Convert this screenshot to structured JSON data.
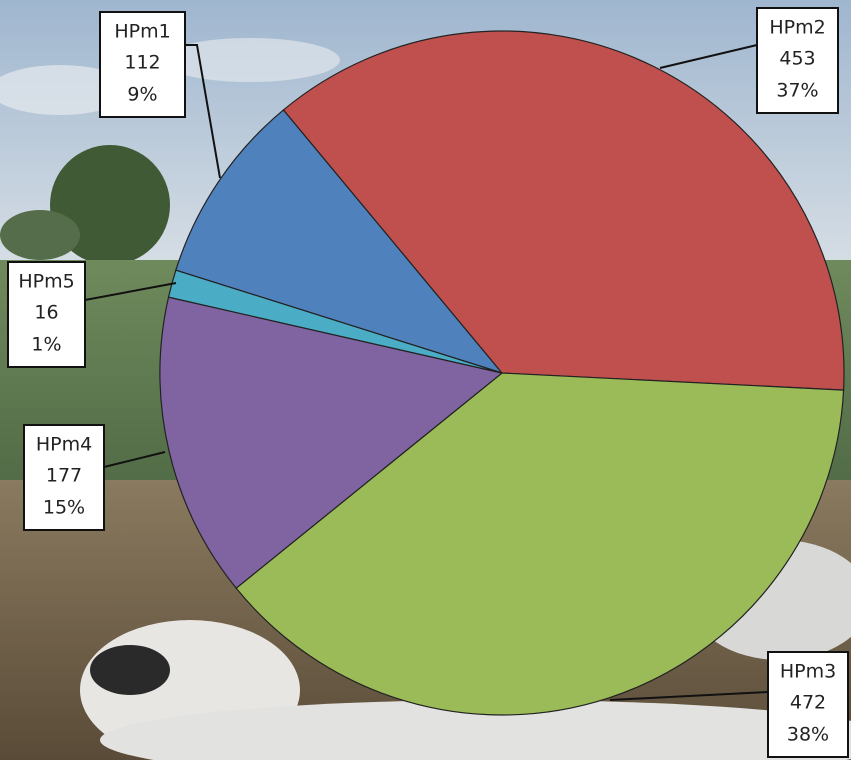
{
  "chart_data": {
    "type": "pie",
    "categories": [
      "HPm1",
      "HPm2",
      "HPm3",
      "HPm4",
      "HPm5"
    ],
    "values": [
      112,
      453,
      472,
      177,
      16
    ],
    "percents": [
      9,
      37,
      38,
      15,
      1
    ],
    "percent_labels": [
      "9%",
      "37%",
      "38%",
      "15%",
      "1%"
    ],
    "colors": [
      "#4f81bd",
      "#c0504d",
      "#9bbb59",
      "#8064a2",
      "#4bacc6"
    ]
  }
}
